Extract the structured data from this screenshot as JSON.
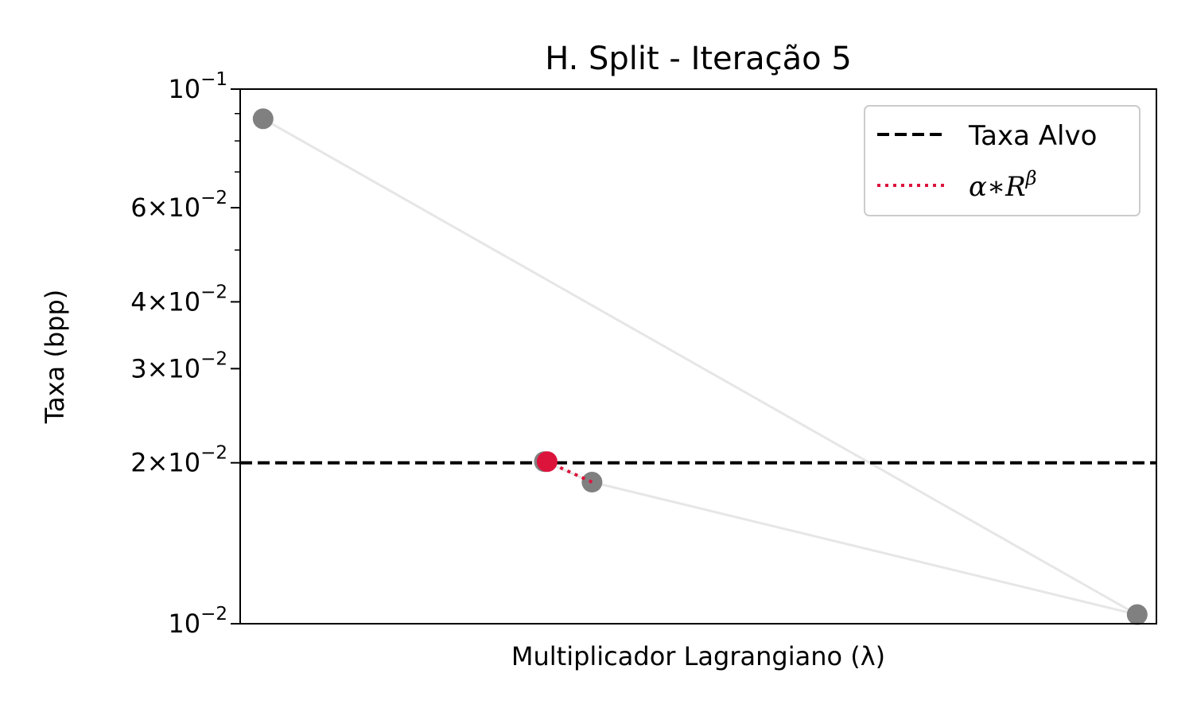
{
  "chart_data": {
    "type": "line",
    "title": "H. Split - Iteração 5",
    "xlabel": "Multiplicador Lagrangiano (λ)",
    "ylabel": "Taxa (bpp)",
    "yscale": "log",
    "ylim": [
      0.01,
      0.1
    ],
    "xlim": [
      0,
      1
    ],
    "x_ticks_visible": false,
    "grid": false,
    "y_ticks": [
      {
        "value": 0.1,
        "mantissa": "",
        "base": "10",
        "exp": "−1"
      },
      {
        "value": 0.06,
        "mantissa": "6×",
        "base": "10",
        "exp": "−2"
      },
      {
        "value": 0.04,
        "mantissa": "4×",
        "base": "10",
        "exp": "−2"
      },
      {
        "value": 0.03,
        "mantissa": "3×",
        "base": "10",
        "exp": "−2"
      },
      {
        "value": 0.02,
        "mantissa": "2×",
        "base": "10",
        "exp": "−2"
      },
      {
        "value": 0.01,
        "mantissa": "",
        "base": "10",
        "exp": "−2"
      }
    ],
    "y_minor_ticks": [
      0.09,
      0.08,
      0.07,
      0.05
    ],
    "target_rate": 0.02,
    "path": {
      "color": "#e6e6e6",
      "x": [
        0.025,
        0.979,
        0.384,
        0.332
      ],
      "y": [
        0.088,
        0.0104,
        0.0184,
        0.0201
      ]
    },
    "points": {
      "color": "#808080",
      "x": [
        0.025,
        0.979,
        0.384,
        0.332
      ],
      "y": [
        0.088,
        0.0104,
        0.0184,
        0.0201
      ]
    },
    "fit": {
      "color": "#dc143c",
      "x": [
        0.384,
        0.335
      ],
      "y": [
        0.0184,
        0.0201
      ]
    },
    "current_point": {
      "x": 0.335,
      "y": 0.0201,
      "color": "#dc143c"
    },
    "legend": {
      "position": "top-right",
      "entries": [
        {
          "label": "Taxa Alvo",
          "style": "dashed",
          "color": "#000000"
        },
        {
          "label_base": "α∗R",
          "label_sup": "β",
          "style": "dotted",
          "color": "#dc143c"
        }
      ]
    }
  }
}
